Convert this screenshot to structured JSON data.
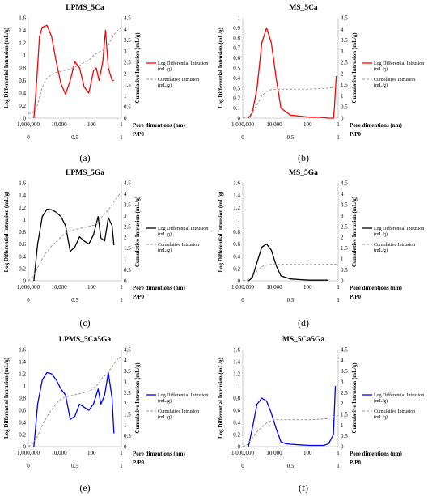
{
  "chart_data": [
    {
      "type": "line",
      "panel_label": "(a)",
      "title": "LPMS_5Ca",
      "color": "#ff0000",
      "ylabel": "Log Differential Intrusion (mL/g)",
      "y2label": "Cumulative Intrusion (mL/g)",
      "xlabel": "Pore dimentions (nm)",
      "x2label": "P/P0",
      "x_ticks": [
        "1,000,000",
        "10,000",
        "100",
        "1"
      ],
      "x2_ticks": [
        "0",
        "0.5",
        "1"
      ],
      "y_ticks": [
        "0",
        "0.2",
        "0.4",
        "0.6",
        "0.8",
        "1",
        "1.2",
        "1.4",
        "1.6"
      ],
      "y2_ticks": [
        "0",
        "0.5",
        "1",
        "1.5",
        "2",
        "2.5",
        "3",
        "3.5",
        "4",
        "4.5"
      ],
      "ylim": [
        0,
        1.6
      ],
      "y2lim": [
        0,
        4.5
      ],
      "legend": {
        "position": "right",
        "entries": [
          "Log Differential Intrusion (mL/g)",
          "Cumulative Intrusion (mL/g)"
        ]
      },
      "series": [
        {
          "name": "Log Differential Intrusion (mL/g)",
          "axis": "left",
          "style": "solid",
          "x": [
            0.06,
            0.09,
            0.12,
            0.15,
            0.2,
            0.25,
            0.3,
            0.35,
            0.4,
            0.45,
            0.5,
            0.55,
            0.6,
            0.65,
            0.7,
            0.73,
            0.76,
            0.8,
            0.83,
            0.86,
            0.9,
            0.92
          ],
          "y": [
            0.0,
            0.6,
            1.3,
            1.45,
            1.48,
            1.3,
            0.9,
            0.55,
            0.38,
            0.6,
            0.9,
            0.8,
            0.5,
            0.4,
            0.75,
            0.8,
            0.6,
            0.9,
            1.4,
            0.8,
            0.6,
            0.6
          ]
        },
        {
          "name": "Cumulative Intrusion (mL/g)",
          "axis": "right",
          "style": "dashed",
          "x": [
            0.0,
            0.05,
            0.1,
            0.15,
            0.2,
            0.25,
            0.3,
            0.35,
            0.4,
            0.45,
            0.5,
            0.55,
            0.6,
            0.65,
            0.7,
            0.75,
            0.8,
            0.85,
            0.9,
            0.95,
            1.0
          ],
          "y": [
            0.2,
            0.25,
            0.6,
            1.4,
            1.8,
            1.95,
            2.05,
            2.1,
            2.15,
            2.2,
            2.3,
            2.35,
            2.5,
            2.6,
            2.8,
            2.95,
            3.05,
            3.2,
            3.6,
            3.9,
            4.05
          ]
        }
      ]
    },
    {
      "type": "line",
      "panel_label": "(b)",
      "title": "MS_5Ca",
      "color": "#ff0000",
      "ylabel": "Log Differential Intrusion (mL/g)",
      "y2label": "Cumulative Intrusion (mL/g)",
      "xlabel": "Pore dimentions (nm)",
      "x2label": "P/P0",
      "x_ticks": [
        "1,000,000",
        "10,000",
        "100",
        "1"
      ],
      "x2_ticks": [
        "0",
        "0.5",
        "1"
      ],
      "y_ticks": [
        "0",
        "0.1",
        "0.2",
        "0.3",
        "0.4",
        "0.5",
        "0.6",
        "0.7",
        "0.8",
        "0.9",
        "1"
      ],
      "y2_ticks": [
        "0",
        "0.5",
        "1",
        "1.5",
        "2",
        "2.5",
        "3",
        "3.5",
        "4",
        "4.5"
      ],
      "ylim": [
        0,
        1
      ],
      "y2lim": [
        0,
        4.5
      ],
      "legend": {
        "position": "right",
        "entries": [
          "Log Differential Intrusion (mL/g)",
          "Cumulative Intrusion (mL/g)"
        ]
      },
      "series": [
        {
          "name": "Log Differential Intrusion (mL/g)",
          "axis": "left",
          "style": "solid",
          "x": [
            0.06,
            0.1,
            0.15,
            0.2,
            0.25,
            0.3,
            0.35,
            0.4,
            0.5,
            0.6,
            0.7,
            0.8,
            0.9,
            0.95,
            0.96,
            0.98
          ],
          "y": [
            0.0,
            0.05,
            0.3,
            0.75,
            0.9,
            0.75,
            0.4,
            0.1,
            0.03,
            0.02,
            0.01,
            0.01,
            0.0,
            0.0,
            0.1,
            0.42
          ]
        },
        {
          "name": "Cumulative Intrusion (mL/g)",
          "axis": "right",
          "style": "dashed",
          "x": [
            0.0,
            0.05,
            0.1,
            0.15,
            0.2,
            0.25,
            0.3,
            0.35,
            0.4,
            0.5,
            0.6,
            0.7,
            0.8,
            0.9,
            1.0
          ],
          "y": [
            0.0,
            0.05,
            0.25,
            0.6,
            1.0,
            1.2,
            1.28,
            1.3,
            1.3,
            1.3,
            1.3,
            1.3,
            1.32,
            1.35,
            1.4
          ]
        }
      ]
    },
    {
      "type": "line",
      "panel_label": "(c)",
      "title": "LPMS_5Ga",
      "color": "#000000",
      "ylabel": "Log Differential Intrusion (mL/g)",
      "y2label": "Cumulative Intrusion (mL/g)",
      "xlabel": "Pore dimentions (nm)",
      "x2label": "P/P0",
      "x_ticks": [
        "1,000,000",
        "10,000",
        "100",
        "1"
      ],
      "x2_ticks": [
        "0",
        "0.5",
        "1"
      ],
      "y_ticks": [
        "0",
        "0.2",
        "0.4",
        "0.6",
        "0.8",
        "1",
        "1.2",
        "1.4",
        "1.6"
      ],
      "y2_ticks": [
        "0",
        "0.5",
        "1",
        "1.5",
        "2",
        "2.5",
        "3",
        "3.5",
        "4",
        "4.5"
      ],
      "ylim": [
        0,
        1.6
      ],
      "y2lim": [
        0,
        4.5
      ],
      "legend": {
        "position": "right",
        "entries": [
          "Log Differential Intrusion (mL/g)",
          "Cumulative Intrusion (mL/g)"
        ]
      },
      "series": [
        {
          "name": "Log Differential Intrusion (mL/g)",
          "axis": "left",
          "style": "solid",
          "x": [
            0.06,
            0.1,
            0.15,
            0.2,
            0.25,
            0.3,
            0.35,
            0.4,
            0.45,
            0.5,
            0.55,
            0.6,
            0.65,
            0.7,
            0.75,
            0.78,
            0.82,
            0.86,
            0.9,
            0.92
          ],
          "y": [
            0.0,
            0.6,
            1.05,
            1.17,
            1.16,
            1.12,
            1.05,
            0.9,
            0.48,
            0.55,
            0.72,
            0.65,
            0.6,
            0.75,
            1.05,
            0.7,
            0.65,
            1.03,
            0.9,
            0.58
          ]
        },
        {
          "name": "Cumulative Intrusion (mL/g)",
          "axis": "right",
          "style": "dashed",
          "x": [
            0.0,
            0.05,
            0.1,
            0.15,
            0.2,
            0.25,
            0.3,
            0.35,
            0.4,
            0.45,
            0.5,
            0.55,
            0.6,
            0.65,
            0.7,
            0.75,
            0.8,
            0.85,
            0.9,
            0.95,
            1.0
          ],
          "y": [
            0.0,
            0.2,
            0.6,
            1.0,
            1.35,
            1.6,
            1.8,
            2.0,
            2.2,
            2.3,
            2.35,
            2.4,
            2.45,
            2.5,
            2.55,
            2.65,
            3.0,
            3.2,
            3.5,
            3.8,
            4.1
          ]
        }
      ]
    },
    {
      "type": "line",
      "panel_label": "(d)",
      "title": "MS_5Ga",
      "color": "#000000",
      "ylabel": "Log Differential Intrusion (mL/g)",
      "y2label": "Cumulative Intrusion (mL/g)",
      "xlabel": "Pore dimentions (nm)",
      "x2label": "P/P0",
      "x_ticks": [
        "1,000,000",
        "10,000",
        "100",
        "1"
      ],
      "x2_ticks": [
        "0",
        "0.5",
        "1"
      ],
      "y_ticks": [
        "0",
        "0.2",
        "0.4",
        "0.6",
        "0.8",
        "1",
        "1.2",
        "1.4",
        "1.6"
      ],
      "y2_ticks": [
        "0",
        "0.5",
        "1",
        "1.5",
        "2",
        "2.5",
        "3",
        "3.5",
        "4",
        "4.5"
      ],
      "ylim": [
        0,
        1.6
      ],
      "y2lim": [
        0,
        4.5
      ],
      "legend": {
        "position": "right",
        "entries": [
          "Log Differential Intrusion (mL/g)",
          "Cumulative Intrusion (mL/g)"
        ]
      },
      "series": [
        {
          "name": "Log Differential Intrusion (mL/g)",
          "axis": "left",
          "style": "solid",
          "x": [
            0.06,
            0.1,
            0.15,
            0.2,
            0.25,
            0.3,
            0.35,
            0.4,
            0.5,
            0.6,
            0.7,
            0.8,
            0.9
          ],
          "y": [
            0.0,
            0.05,
            0.3,
            0.55,
            0.6,
            0.5,
            0.25,
            0.08,
            0.03,
            0.02,
            0.01,
            0.01,
            0.01
          ]
        },
        {
          "name": "Cumulative Intrusion (mL/g)",
          "axis": "right",
          "style": "dashed",
          "x": [
            0.0,
            0.05,
            0.1,
            0.15,
            0.2,
            0.25,
            0.3,
            0.35,
            0.4,
            0.5,
            0.6,
            0.7,
            0.8,
            0.9,
            1.0
          ],
          "y": [
            0.0,
            0.05,
            0.2,
            0.45,
            0.65,
            0.72,
            0.75,
            0.75,
            0.75,
            0.75,
            0.75,
            0.75,
            0.75,
            0.75,
            0.75
          ]
        }
      ]
    },
    {
      "type": "line",
      "panel_label": "(e)",
      "title": "LPMS_5Ca5Ga",
      "color": "#0000ff",
      "ylabel": "Log Differential Intrusion (mL/g)",
      "y2label": "Cumulative Intrusion (mL/g)",
      "xlabel": "Pore dimentions (nm)",
      "x2label": "P/P0",
      "x_ticks": [
        "1,000,000",
        "10,000",
        "100",
        "1"
      ],
      "x2_ticks": [
        "0",
        "0.5",
        "1"
      ],
      "y_ticks": [
        "0",
        "0.2",
        "0.4",
        "0.6",
        "0.8",
        "1",
        "1.2",
        "1.4",
        "1.6"
      ],
      "y2_ticks": [
        "0",
        "0.5",
        "1",
        "1.5",
        "2",
        "2.5",
        "3",
        "3.5",
        "4",
        "4.5"
      ],
      "ylim": [
        0,
        1.6
      ],
      "y2lim": [
        0,
        4.5
      ],
      "legend": {
        "position": "right",
        "entries": [
          "Log Differential Intrusion (mL/g)",
          "Cumulative Intrusion (mL/g)"
        ]
      },
      "series": [
        {
          "name": "Log Differential Intrusion (mL/g)",
          "axis": "left",
          "style": "solid",
          "x": [
            0.06,
            0.1,
            0.15,
            0.2,
            0.25,
            0.3,
            0.35,
            0.4,
            0.45,
            0.5,
            0.55,
            0.6,
            0.65,
            0.7,
            0.75,
            0.78,
            0.82,
            0.86,
            0.9,
            0.92
          ],
          "y": [
            0.0,
            0.7,
            1.1,
            1.22,
            1.2,
            1.1,
            0.95,
            0.85,
            0.45,
            0.5,
            0.7,
            0.65,
            0.6,
            0.7,
            0.95,
            0.7,
            0.85,
            1.22,
            0.8,
            0.22
          ]
        },
        {
          "name": "Cumulative Intrusion (mL/g)",
          "axis": "right",
          "style": "dashed",
          "x": [
            0.0,
            0.05,
            0.1,
            0.15,
            0.2,
            0.25,
            0.3,
            0.35,
            0.4,
            0.45,
            0.5,
            0.55,
            0.6,
            0.65,
            0.7,
            0.75,
            0.8,
            0.85,
            0.9,
            0.95,
            1.0
          ],
          "y": [
            0.0,
            0.15,
            0.5,
            1.0,
            1.4,
            1.7,
            2.0,
            2.2,
            2.3,
            2.35,
            2.4,
            2.45,
            2.5,
            2.55,
            2.7,
            2.9,
            3.2,
            3.4,
            3.7,
            4.0,
            4.2
          ]
        }
      ]
    },
    {
      "type": "line",
      "panel_label": "(f)",
      "title": "MS_5Ca5Ga",
      "color": "#0000ff",
      "ylabel": "Log Differential Intrusion (mL/g)",
      "y2label": "Cumulative Intrusion (mL/g)",
      "xlabel": "Pore dimentions (nm)",
      "x2label": "P/P0",
      "x_ticks": [
        "1,000,000",
        "10,000",
        "100",
        "1"
      ],
      "x2_ticks": [
        "0",
        "0.5",
        "1"
      ],
      "y_ticks": [
        "0",
        "0.2",
        "0.4",
        "0.6",
        "0.8",
        "1",
        "1.2",
        "1.4",
        "1.6"
      ],
      "y2_ticks": [
        "0",
        "0.5",
        "1",
        "1.5",
        "2",
        "2.5",
        "3",
        "3.5",
        "4",
        "4.5"
      ],
      "ylim": [
        0,
        1.6
      ],
      "y2lim": [
        0,
        4.5
      ],
      "legend": {
        "position": "right",
        "entries": [
          "Log Differential Intrusion (mL/g)",
          "Cumulative Intrusion (mL/g)"
        ]
      },
      "series": [
        {
          "name": "Log Differential Intrusion (mL/g)",
          "axis": "left",
          "style": "solid",
          "x": [
            0.06,
            0.1,
            0.15,
            0.2,
            0.25,
            0.3,
            0.35,
            0.4,
            0.45,
            0.5,
            0.6,
            0.7,
            0.8,
            0.85,
            0.9,
            0.95,
            0.97
          ],
          "y": [
            0.0,
            0.3,
            0.7,
            0.8,
            0.75,
            0.55,
            0.3,
            0.08,
            0.05,
            0.04,
            0.03,
            0.02,
            0.02,
            0.02,
            0.05,
            0.2,
            1.0
          ]
        },
        {
          "name": "Cumulative Intrusion (mL/g)",
          "axis": "right",
          "style": "dashed",
          "x": [
            0.0,
            0.05,
            0.1,
            0.15,
            0.2,
            0.25,
            0.3,
            0.35,
            0.4,
            0.5,
            0.6,
            0.7,
            0.8,
            0.9,
            1.0
          ],
          "y": [
            0.0,
            0.1,
            0.4,
            0.7,
            0.9,
            1.1,
            1.2,
            1.25,
            1.25,
            1.25,
            1.25,
            1.25,
            1.27,
            1.3,
            1.45
          ]
        }
      ]
    }
  ]
}
